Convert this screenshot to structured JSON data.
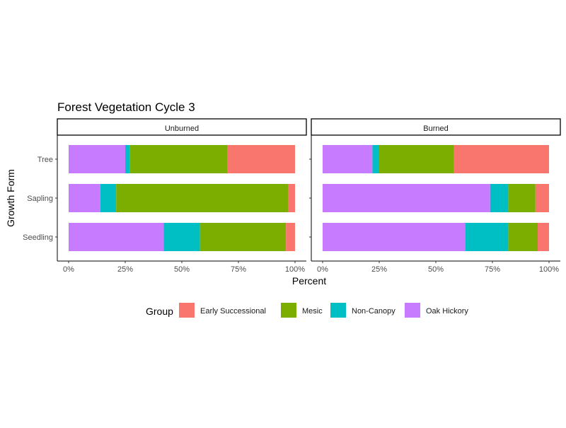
{
  "chart_data": {
    "type": "bar",
    "orientation": "horizontal",
    "stacked": true,
    "title": "Forest Vegetation Cycle 3",
    "xlabel": "Percent",
    "ylabel": "Growth Form",
    "xlim": [
      0,
      1
    ],
    "x_ticks": [
      "0%",
      "25%",
      "50%",
      "75%",
      "100%"
    ],
    "categories": [
      "Tree",
      "Sapling",
      "Seedling"
    ],
    "legend": {
      "title": "Group",
      "position": "bottom",
      "entries": [
        "Early Successional",
        "Mesic",
        "Non-Canopy",
        "Oak Hickory"
      ]
    },
    "series_colors": {
      "Early Successional": "#F8766D",
      "Mesic": "#7CAE00",
      "Non-Canopy": "#00BFC4",
      "Oak Hickory": "#C77CFF"
    },
    "stack_order": [
      "Oak Hickory",
      "Non-Canopy",
      "Mesic",
      "Early Successional"
    ],
    "panels": [
      {
        "label": "Unburned",
        "values": {
          "Tree": {
            "Oak Hickory": 0.25,
            "Non-Canopy": 0.02,
            "Mesic": 0.43,
            "Early Successional": 0.3
          },
          "Sapling": {
            "Oak Hickory": 0.14,
            "Non-Canopy": 0.07,
            "Mesic": 0.76,
            "Early Successional": 0.03
          },
          "Seedling": {
            "Oak Hickory": 0.42,
            "Non-Canopy": 0.16,
            "Mesic": 0.38,
            "Early Successional": 0.04
          }
        }
      },
      {
        "label": "Burned",
        "values": {
          "Tree": {
            "Oak Hickory": 0.22,
            "Non-Canopy": 0.03,
            "Mesic": 0.33,
            "Early Successional": 0.42
          },
          "Sapling": {
            "Oak Hickory": 0.74,
            "Non-Canopy": 0.08,
            "Mesic": 0.12,
            "Early Successional": 0.06
          },
          "Seedling": {
            "Oak Hickory": 0.63,
            "Non-Canopy": 0.19,
            "Mesic": 0.13,
            "Early Successional": 0.05
          }
        }
      }
    ]
  }
}
